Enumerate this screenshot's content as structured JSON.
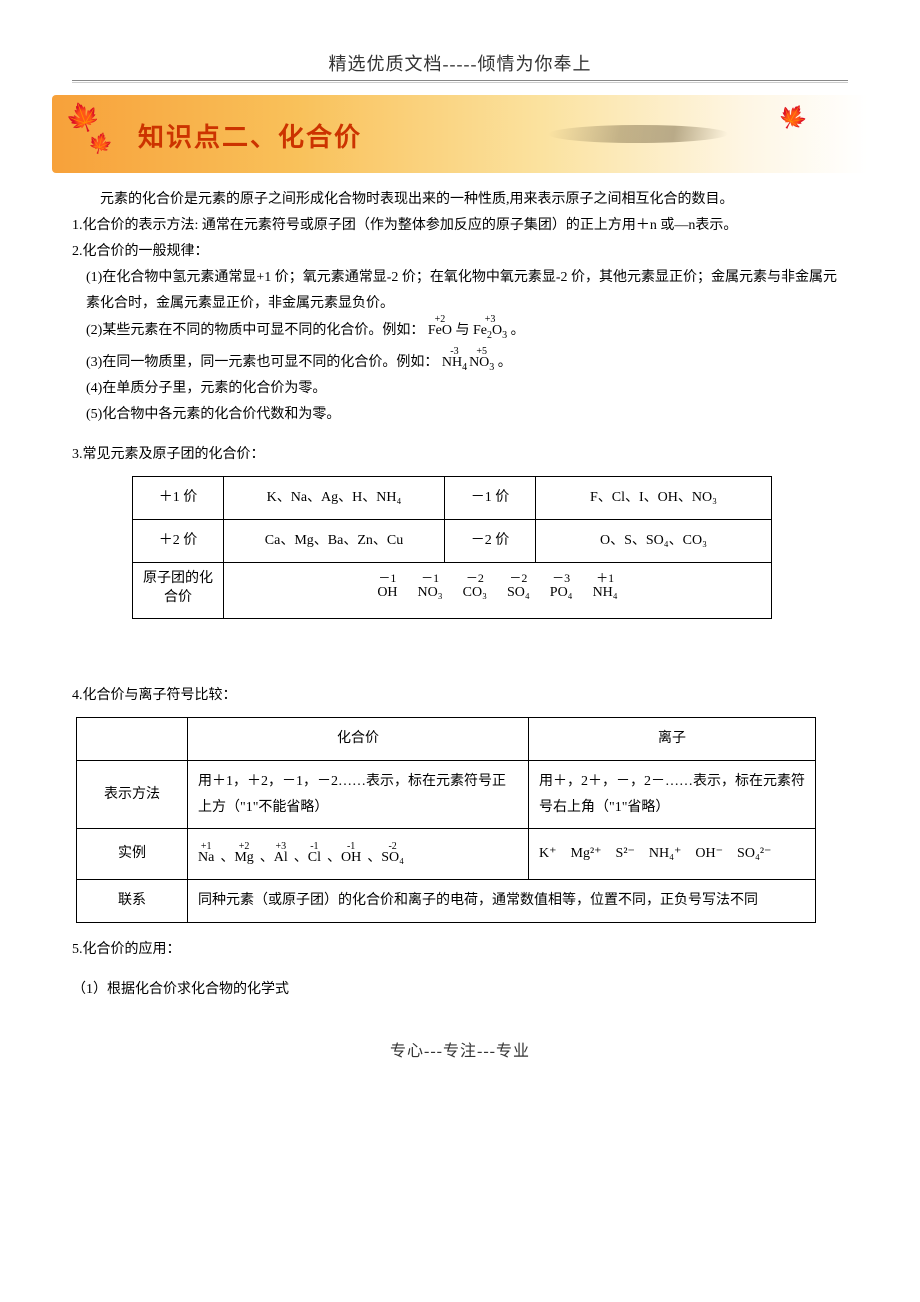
{
  "page": {
    "top_header": "精选优质文档-----倾情为你奉上",
    "banner_title": "知识点二、化合价",
    "footer": "专心---专注---专业"
  },
  "intro": "元素的化合价是元素的原子之间形成化合物时表现出来的一种性质,用来表示原子之间相互化合的数目。",
  "p1": "1.化合价的表示方法: 通常在元素符号或原子团（作为整体参加反应的原子集团）的正上方用＋n 或—n表示。",
  "p2": "2.化合价的一般规律：",
  "p2_1": "(1)在化合物中氢元素通常显+1 价；氧元素通常显-2 价；在氧化物中氧元素显-2 价，其他元素显正价；金属元素与非金属元素化合时，金属元素显正价，非金属元素显负价。",
  "p2_2_prefix": "(2)某些元素在不同的物质中可显不同的化合价。例如：",
  "p2_2_join": "与",
  "p2_2_end": "。",
  "p2_3_prefix": "(3)在同一物质里，同一元素也可显不同的化合价。例如：",
  "p2_3_end": "。",
  "p2_4": "(4)在单质分子里，元素的化合价为零。",
  "p2_5": "(5)化合物中各元素的化合价代数和为零。",
  "p3": "3.常见元素及原子团的化合价：",
  "table1": {
    "rows": [
      {
        "c1": "＋1 价",
        "c2": "K、Na、Ag、H、NH₄",
        "c3": "－1 价",
        "c4": "F、Cl、I、OH、NO₃"
      },
      {
        "c1": "＋2 价",
        "c2": "Ca、Mg、Ba、Zn、Cu",
        "c3": "－2 价",
        "c4": "O、S、SO₄、CO₃"
      }
    ],
    "rad_label": "原子团的化合价",
    "radicals": [
      {
        "top": "－1",
        "bot": "OH"
      },
      {
        "top": "－1",
        "bot": "NO₃"
      },
      {
        "top": "－2",
        "bot": "CO₃"
      },
      {
        "top": "－2",
        "bot": "SO₄"
      },
      {
        "top": "－3",
        "bot": "PO₄"
      },
      {
        "top": "＋1",
        "bot": "NH₄"
      }
    ]
  },
  "p4": "4.化合价与离子符号比较：",
  "table2": {
    "head": {
      "c1": "",
      "c2": "化合价",
      "c3": "离子"
    },
    "rows": [
      {
        "label": "表示方法",
        "c2": "用＋1，＋2，－1，－2……表示，标在元素符号正上方（\"1\"不能省略）",
        "c3": "用＋，2＋，－，2－……表示，标在元素符号右上角（\"1\"省略）"
      }
    ],
    "example_label": "实例",
    "example_valences": [
      {
        "v": "+1",
        "b": "Na"
      },
      {
        "v": "+2",
        "b": "Mg"
      },
      {
        "v": "+3",
        "b": "Al"
      },
      {
        "v": "-1",
        "b": "Cl"
      },
      {
        "v": "-1",
        "b": "OH"
      },
      {
        "v": "-2",
        "b": "SO₄"
      }
    ],
    "example_ions": [
      "K⁺",
      "Mg²⁺",
      "S²⁻",
      "NH₄⁺",
      "OH⁻",
      "SO₄²⁻"
    ],
    "link_label": "联系",
    "link_text": "同种元素（或原子团）的化合价和离子的电荷，通常数值相等，位置不同，正负号写法不同"
  },
  "p5": "5.化合价的应用：",
  "p5_1": "（1）根据化合价求化合物的化学式"
}
